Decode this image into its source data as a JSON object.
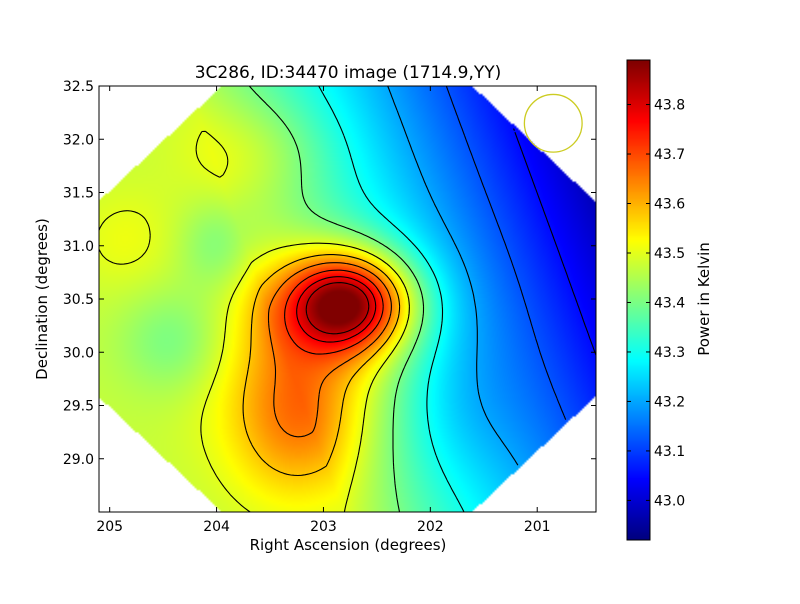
{
  "chart_data": {
    "type": "heatmap",
    "title": "3C286, ID:34470 image (1714.9,YY)",
    "xlabel": "Right Ascension (degrees)",
    "ylabel": "Declination (degrees)",
    "xlim": [
      205.1,
      200.45
    ],
    "ylim": [
      28.5,
      32.5
    ],
    "x_ticks": [
      {
        "value": 205,
        "label": "205"
      },
      {
        "value": 204,
        "label": "204"
      },
      {
        "value": 203,
        "label": "203"
      },
      {
        "value": 202,
        "label": "202"
      },
      {
        "value": 201,
        "label": "201"
      }
    ],
    "y_ticks": [
      {
        "value": 29.0,
        "label": "29.0"
      },
      {
        "value": 29.5,
        "label": "29.5"
      },
      {
        "value": 30.0,
        "label": "30.0"
      },
      {
        "value": 30.5,
        "label": "30.5"
      },
      {
        "value": 31.0,
        "label": "31.0"
      },
      {
        "value": 31.5,
        "label": "31.5"
      },
      {
        "value": 32.0,
        "label": "32.0"
      },
      {
        "value": 32.5,
        "label": "32.5"
      }
    ],
    "colorbar": {
      "label": "Power in Kelvin",
      "min": 42.92,
      "max": 43.89,
      "colormap": "jet",
      "ticks": [
        {
          "value": 43.0,
          "label": "43.0"
        },
        {
          "value": 43.1,
          "label": "43.1"
        },
        {
          "value": 43.2,
          "label": "43.2"
        },
        {
          "value": 43.3,
          "label": "43.3"
        },
        {
          "value": 43.4,
          "label": "43.4"
        },
        {
          "value": 43.5,
          "label": "43.5"
        },
        {
          "value": 43.6,
          "label": "43.6"
        },
        {
          "value": 43.7,
          "label": "43.7"
        },
        {
          "value": 43.8,
          "label": "43.8"
        }
      ]
    },
    "field": {
      "base": 43.28,
      "gradient": [
        {
          "ra0": 203.8,
          "dec0": 31.2,
          "value": 43.47,
          "ra1": 200.5,
          "dec1": 32.4,
          "value1": 42.93
        }
      ],
      "sources": [
        {
          "ra": 202.78,
          "dec": 30.47,
          "peak": 0.47,
          "sigma_ra": 0.42,
          "sigma_dec": 0.33
        },
        {
          "ra": 202.95,
          "dec": 29.85,
          "peak": 0.14,
          "sigma_ra": 0.7,
          "sigma_dec": 0.7
        },
        {
          "ra": 203.3,
          "dec": 29.3,
          "peak": 0.1,
          "sigma_ra": 0.4,
          "sigma_dec": 0.5
        },
        {
          "ra": 203.6,
          "dec": 31.9,
          "peak": 0.06,
          "sigma_ra": 0.5,
          "sigma_dec": 0.35
        },
        {
          "ra": 204.85,
          "dec": 31.05,
          "peak": 0.04,
          "sigma_ra": 0.35,
          "sigma_dec": 0.35
        }
      ],
      "holes": [
        {
          "ra": 204.0,
          "dec": 31.0,
          "depth": 0.07,
          "sigma_ra": 0.25,
          "sigma_dec": 0.3
        },
        {
          "ra": 204.4,
          "dec": 30.1,
          "depth": 0.08,
          "sigma_ra": 0.35,
          "sigma_dec": 0.35
        },
        {
          "ra": 201.9,
          "dec": 29.5,
          "depth": 0.06,
          "sigma_ra": 0.5,
          "sigma_dec": 0.55
        }
      ]
    },
    "contour_levels": [
      43.05,
      43.12,
      43.2,
      43.3,
      43.4,
      43.5,
      43.58,
      43.65,
      43.72,
      43.78,
      43.83
    ],
    "valid_region": {
      "shape": "rotated-square",
      "center_ra": 202.78,
      "center_dec": 30.5,
      "half_diagonal_ra": 3.3,
      "half_diagonal_dec": 3.1
    },
    "beam_marker": {
      "ra": 200.85,
      "dec": 32.15,
      "radius_deg": 0.27,
      "color": "#cccc22"
    }
  }
}
